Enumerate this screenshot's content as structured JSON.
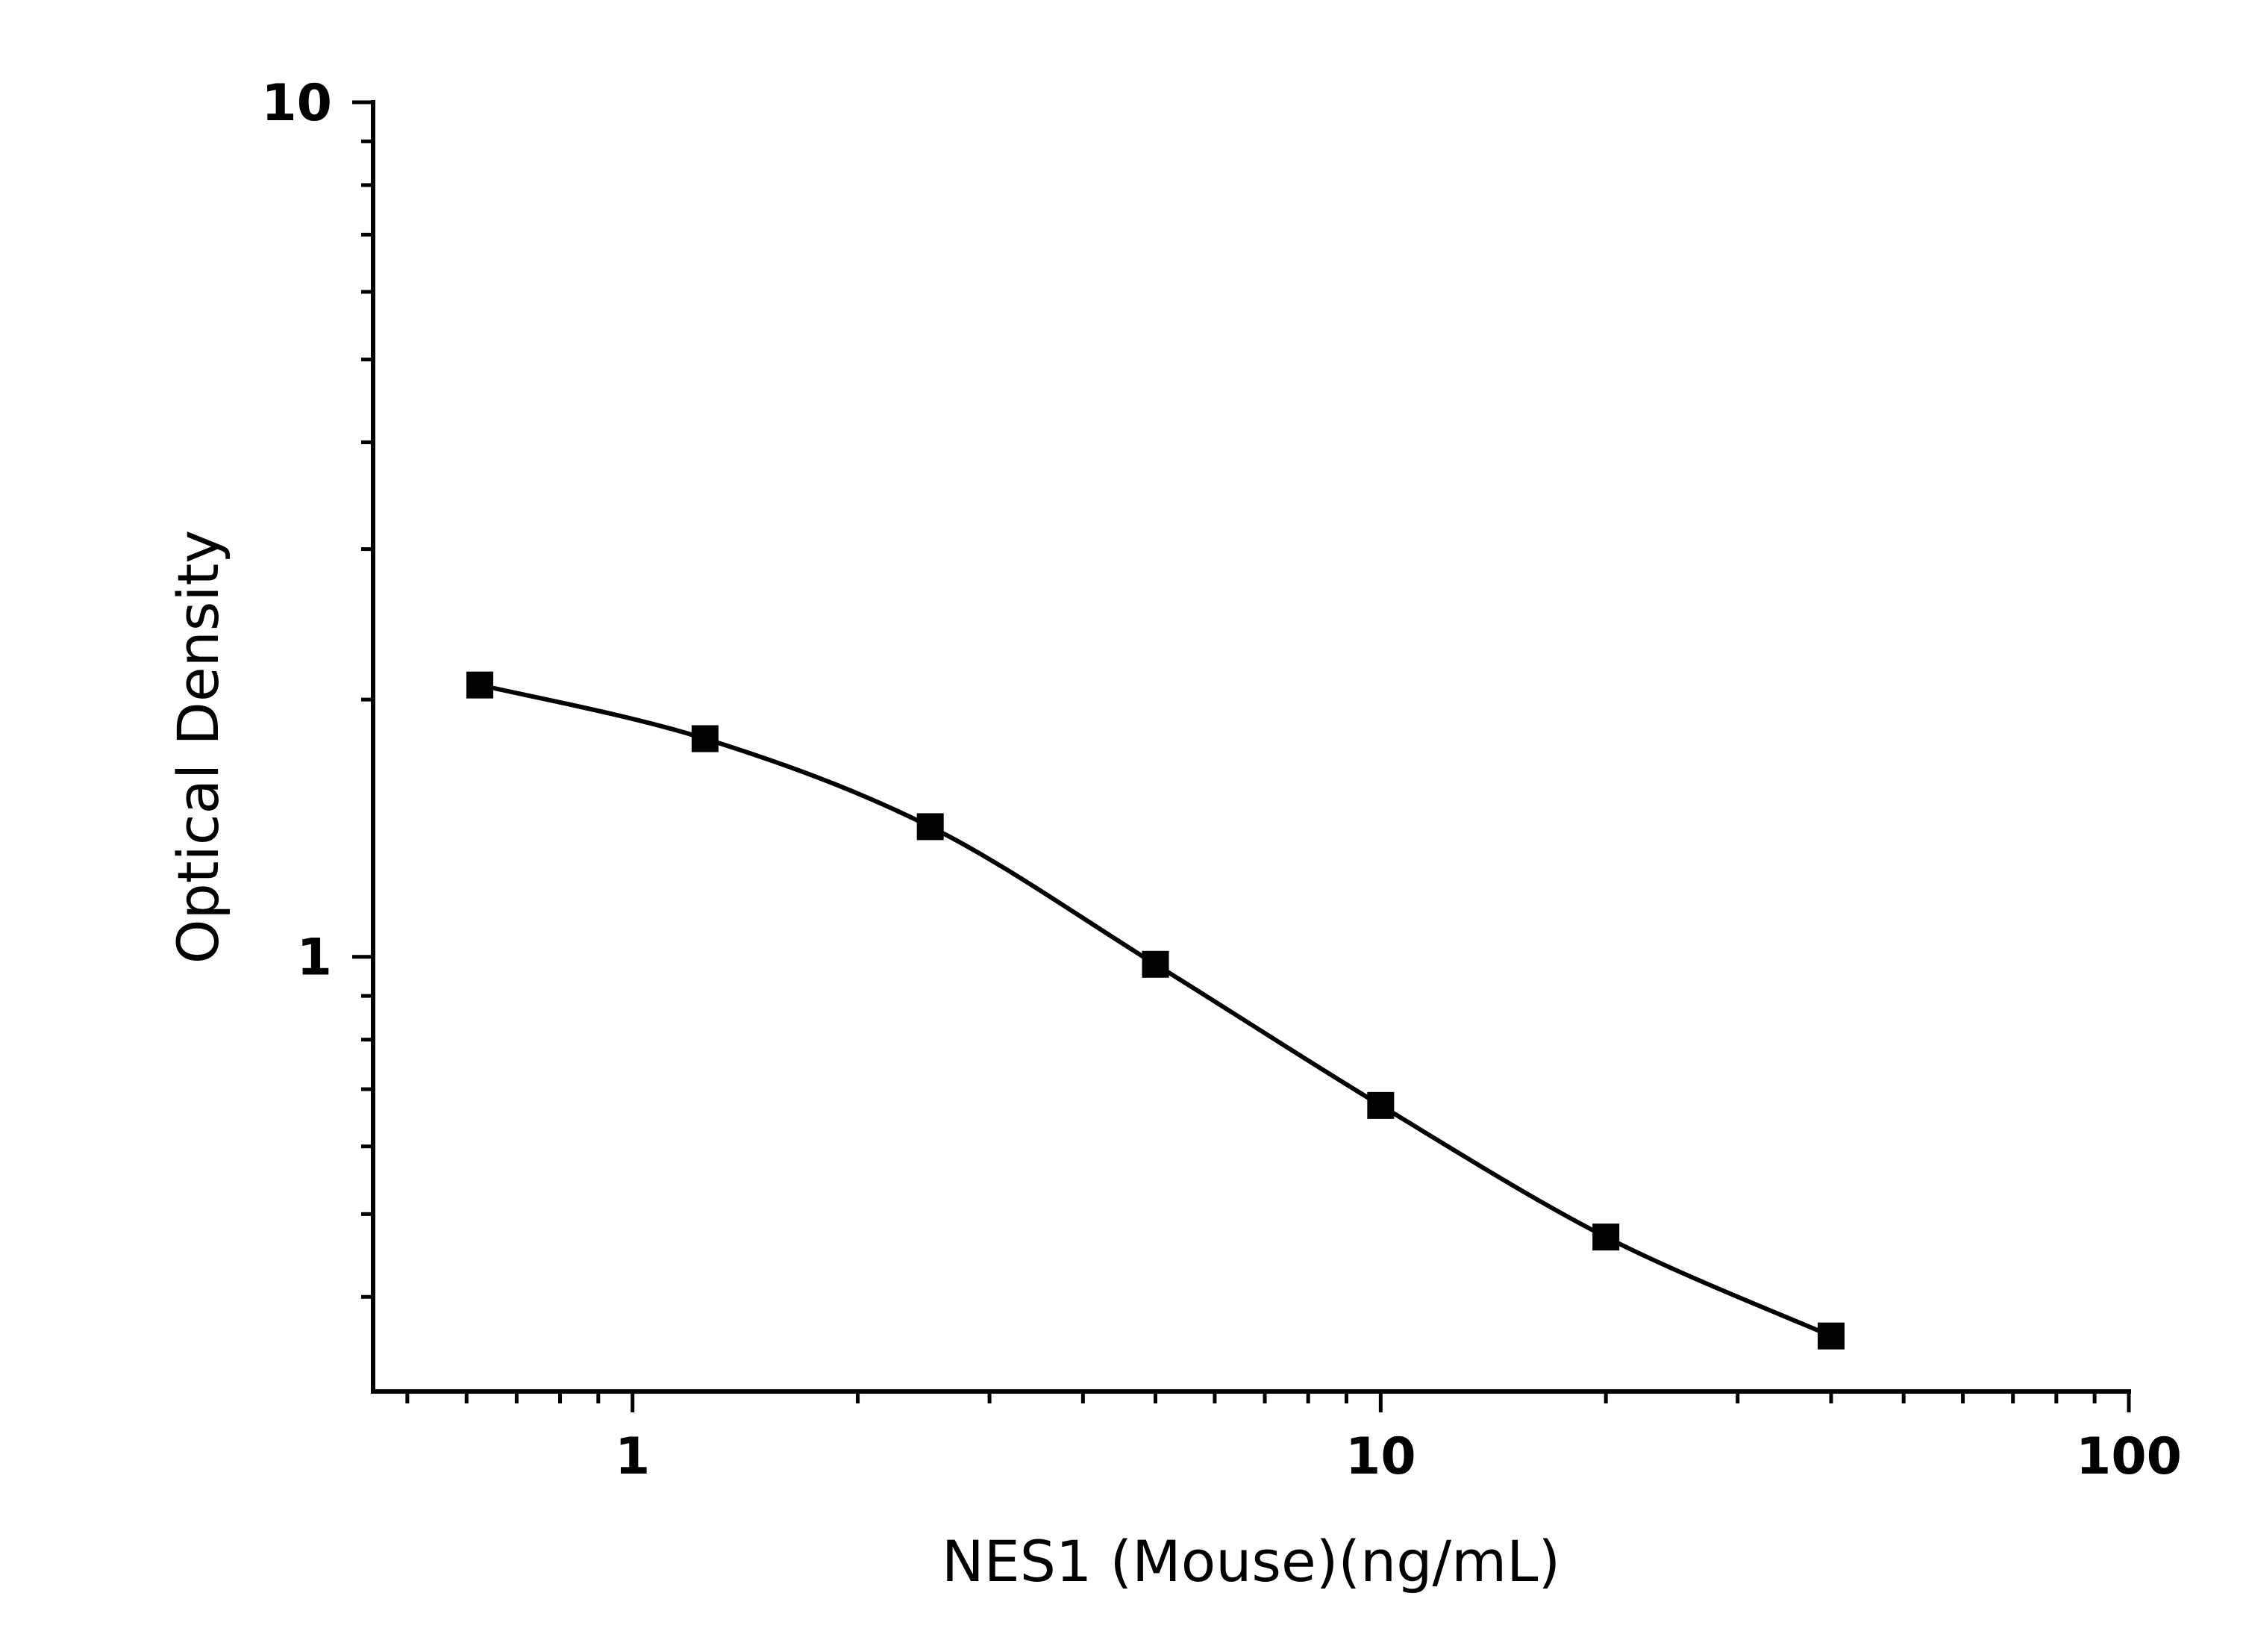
{
  "chart_data": {
    "type": "scatter",
    "title": "",
    "xlabel": "NES1 (Mouse)(ng/mL)",
    "ylabel": "Optical Density",
    "x_scale": "log",
    "y_scale": "log",
    "xlim": [
      0.45,
      100
    ],
    "ylim": [
      0.31,
      10
    ],
    "x_ticks": [
      1,
      10,
      100
    ],
    "x_tick_labels": [
      "1",
      "10",
      "100"
    ],
    "y_ticks": [
      1,
      10
    ],
    "y_tick_labels": [
      "1",
      "10"
    ],
    "grid": false,
    "legend": "none",
    "series": [
      {
        "x": [
          0.625,
          1.25,
          2.5,
          5,
          10,
          20,
          40
        ],
        "y": [
          2.08,
          1.8,
          1.42,
          0.98,
          0.67,
          0.47,
          0.36
        ],
        "marker": "square",
        "fit_line": true,
        "color": "#000000"
      }
    ]
  }
}
